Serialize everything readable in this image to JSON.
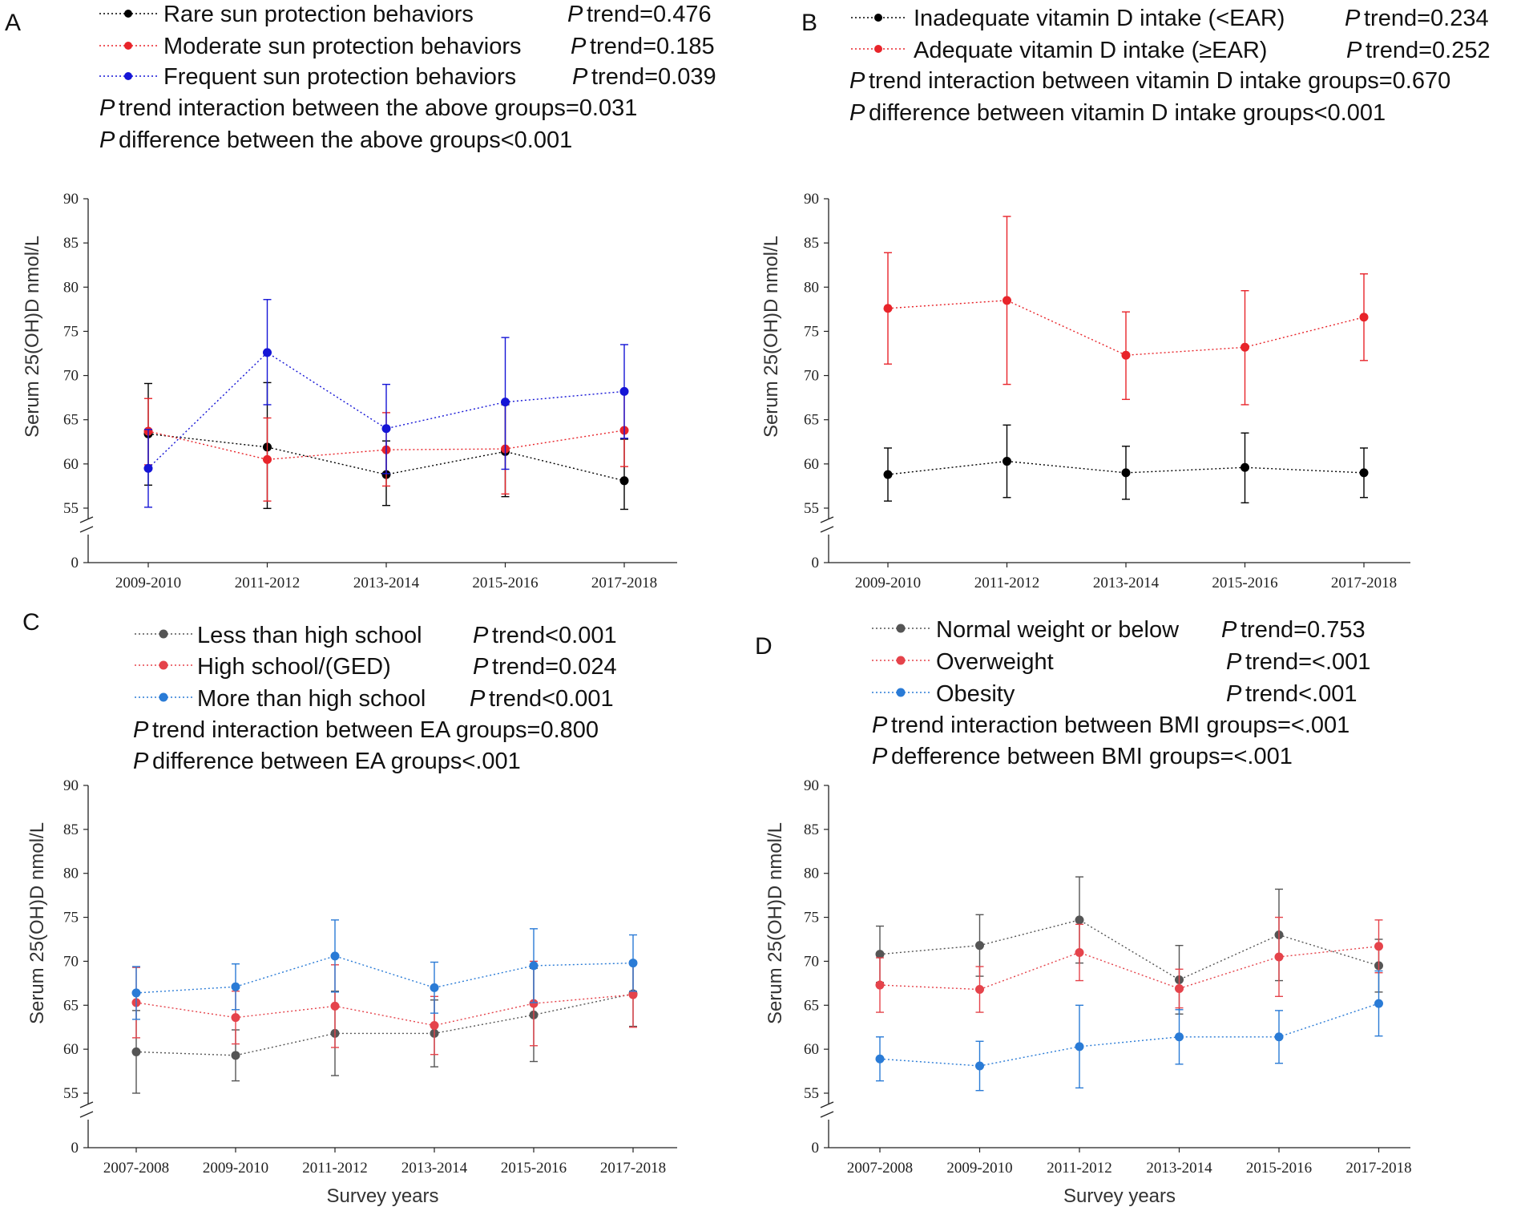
{
  "chart_data": [
    {
      "type": "line",
      "panel_label": "A",
      "title": "",
      "xlabel": "",
      "ylabel": "Serum 25(OH)D nmol/L",
      "ylim": [
        0,
        90
      ],
      "y_break": [
        0,
        55
      ],
      "yticks": [
        0,
        55,
        60,
        65,
        70,
        75,
        80,
        85,
        90
      ],
      "categories": [
        "2009-2010",
        "2011-2012",
        "2013-2014",
        "2015-2016",
        "2017-2018"
      ],
      "series": [
        {
          "name": "Rare sun protection behaviors",
          "p_text": "trend=0.476",
          "color": "#000000",
          "values": [
            63.4,
            61.9,
            58.8,
            61.4,
            58.1
          ],
          "lower": [
            57.6,
            54.7,
            55.3,
            56.3,
            53.8
          ],
          "upper": [
            69.1,
            69.2,
            62.6,
            66.7,
            62.8
          ]
        },
        {
          "name": "Moderate sun protection behaviors",
          "p_text": "trend=0.185",
          "color": "#e8242a",
          "values": [
            63.7,
            60.5,
            61.6,
            61.7,
            63.8
          ],
          "lower": [
            59.9,
            55.8,
            57.5,
            56.6,
            59.7
          ],
          "upper": [
            67.4,
            65.2,
            65.8,
            66.8,
            68.0
          ]
        },
        {
          "name": "Frequent sun protection behaviors",
          "p_text": "trend=0.039",
          "color": "#1515d6",
          "values": [
            59.5,
            72.6,
            64.0,
            67.0,
            68.2
          ],
          "lower": [
            55.1,
            66.7,
            58.9,
            59.4,
            62.9
          ],
          "upper": [
            63.9,
            78.6,
            69.0,
            74.3,
            73.5
          ]
        }
      ],
      "notes": [
        {
          "p": "P",
          "text": "trend interaction between the above groups=0.031"
        },
        {
          "p": "P",
          "text": "difference between the above groups<0.001"
        }
      ]
    },
    {
      "type": "line",
      "panel_label": "B",
      "title": "",
      "xlabel": "",
      "ylabel": "Serum 25(OH)D nmol/L",
      "ylim": [
        0,
        90
      ],
      "y_break": [
        0,
        55
      ],
      "yticks": [
        0,
        55,
        60,
        65,
        70,
        75,
        80,
        85,
        90
      ],
      "categories": [
        "2009-2010",
        "2011-2012",
        "2013-2014",
        "2015-2016",
        "2017-2018"
      ],
      "series": [
        {
          "name": "Inadequate vitamin D intake (<EAR)",
          "p_text": "trend=0.234",
          "color": "#000000",
          "values": [
            58.8,
            60.3,
            59.0,
            59.6,
            59.0
          ],
          "lower": [
            55.8,
            56.2,
            56.0,
            55.6,
            56.2
          ],
          "upper": [
            61.8,
            64.4,
            62.0,
            63.5,
            61.8
          ]
        },
        {
          "name": "Adequate vitamin D intake (≥EAR)",
          "p_text": "trend=0.252",
          "color": "#e8242a",
          "values": [
            77.6,
            78.5,
            72.3,
            73.2,
            76.6
          ],
          "lower": [
            71.3,
            69.0,
            67.3,
            66.7,
            71.7
          ],
          "upper": [
            83.9,
            88.0,
            77.2,
            79.6,
            81.5
          ]
        }
      ],
      "notes": [
        {
          "p": "P",
          "text": "trend interaction between vitamin D intake groups=0.670"
        },
        {
          "p": "P",
          "text": "difference between vitamin D intake groups<0.001"
        }
      ]
    },
    {
      "type": "line",
      "panel_label": "C",
      "title": "",
      "xlabel": "Survey years",
      "ylabel": "Serum 25(OH)D nmol/L",
      "ylim": [
        0,
        90
      ],
      "y_break": [
        0,
        55
      ],
      "yticks": [
        0,
        55,
        60,
        65,
        70,
        75,
        80,
        85,
        90
      ],
      "categories": [
        "2007-2008",
        "2009-2010",
        "2011-2012",
        "2013-2014",
        "2015-2016",
        "2017-2018"
      ],
      "series": [
        {
          "name": "Less than high school",
          "p_text": "trend<0.001",
          "color": "#555555",
          "values": [
            59.7,
            59.3,
            61.8,
            61.8,
            63.9,
            66.3
          ],
          "lower": [
            55.0,
            56.4,
            57.0,
            58.0,
            58.6,
            62.6
          ],
          "upper": [
            64.4,
            62.2,
            66.6,
            65.6,
            69.2,
            70.0
          ]
        },
        {
          "name": "High school/(GED)",
          "p_text": "trend=0.024",
          "color": "#e5434b",
          "values": [
            65.3,
            63.6,
            64.9,
            62.7,
            65.2,
            66.2
          ],
          "lower": [
            61.3,
            60.6,
            60.2,
            59.4,
            60.4,
            62.5
          ],
          "upper": [
            69.3,
            66.6,
            69.6,
            66.0,
            70.0,
            69.9
          ]
        },
        {
          "name": "More than high school",
          "p_text": "trend<0.001",
          "color": "#2a7bd6",
          "values": [
            66.4,
            67.1,
            70.6,
            67.0,
            69.5,
            69.8
          ],
          "lower": [
            63.4,
            64.5,
            66.5,
            64.1,
            65.3,
            66.6
          ],
          "upper": [
            69.4,
            69.7,
            74.7,
            69.9,
            73.7,
            73.0
          ]
        }
      ],
      "notes": [
        {
          "p": "P",
          "text": "trend interaction between EA groups=0.800"
        },
        {
          "p": "P",
          "text": "difference between EA groups<.001"
        }
      ]
    },
    {
      "type": "line",
      "panel_label": "D",
      "title": "",
      "xlabel": "Survey years",
      "ylabel": "Serum 25(OH)D nmol/L",
      "ylim": [
        0,
        90
      ],
      "y_break": [
        0,
        55
      ],
      "yticks": [
        0,
        55,
        60,
        65,
        70,
        75,
        80,
        85,
        90
      ],
      "categories": [
        "2007-2008",
        "2009-2010",
        "2011-2012",
        "2013-2014",
        "2015-2016",
        "2017-2018"
      ],
      "series": [
        {
          "name": "Normal weight or below",
          "p_text": "trend=0.753",
          "color": "#555555",
          "values": [
            70.8,
            71.8,
            74.7,
            67.9,
            73.0,
            69.5
          ],
          "lower": [
            67.6,
            68.3,
            69.8,
            64.0,
            67.8,
            66.5
          ],
          "upper": [
            74.0,
            75.3,
            79.6,
            71.8,
            78.2,
            72.5
          ]
        },
        {
          "name": "Overweight",
          "p_text": "trend=<.001",
          "color": "#e5434b",
          "values": [
            67.3,
            66.8,
            71.0,
            66.9,
            70.5,
            71.7
          ],
          "lower": [
            64.2,
            64.2,
            67.8,
            64.7,
            66.0,
            68.7
          ],
          "upper": [
            70.4,
            69.4,
            74.2,
            69.1,
            75.0,
            74.7
          ]
        },
        {
          "name": "Obesity",
          "p_text": "trend<.001",
          "color": "#2a7bd6",
          "values": [
            58.9,
            58.1,
            60.3,
            61.4,
            61.4,
            65.2
          ],
          "lower": [
            56.4,
            55.3,
            55.6,
            58.3,
            58.4,
            61.5
          ],
          "upper": [
            61.4,
            60.9,
            65.0,
            64.5,
            64.4,
            68.9
          ]
        }
      ],
      "notes": [
        {
          "p": "P",
          "text": "trend interaction between BMI groups=<.001"
        },
        {
          "p": "P",
          "text": "defference between BMI groups=<.001"
        }
      ]
    }
  ]
}
